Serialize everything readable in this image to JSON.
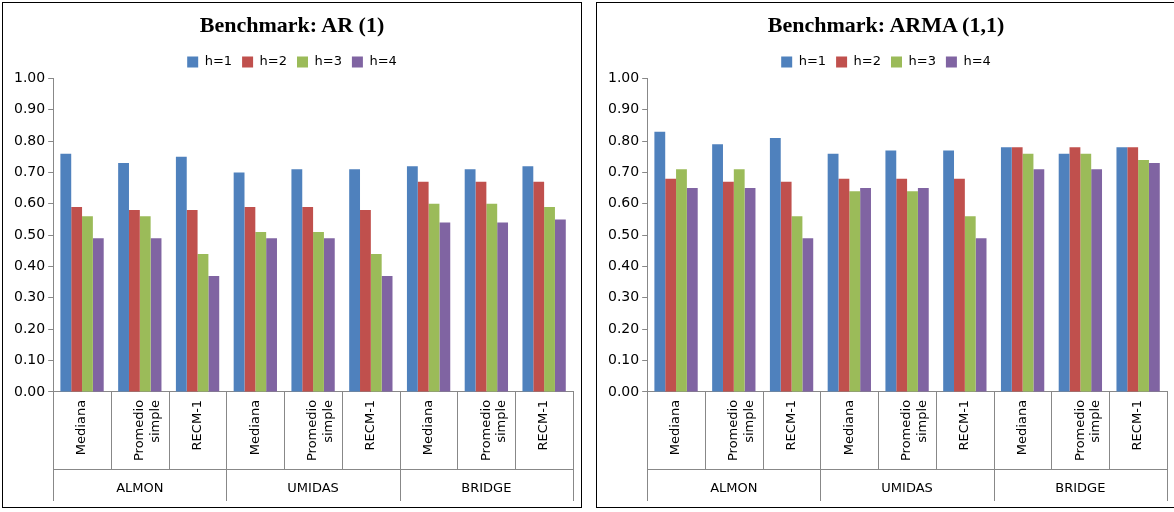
{
  "chart_data": [
    {
      "type": "bar",
      "title": "Benchmark: AR (1)",
      "categories": [
        "Mediana",
        "Promedio simple",
        "RECM-1",
        "Mediana",
        "Promedio simple",
        "RECM-1",
        "Mediana",
        "Promedio simple",
        "RECM-1"
      ],
      "series": [
        {
          "name": "h=1",
          "color": "#4f81bd",
          "values": [
            0.76,
            0.73,
            0.75,
            0.7,
            0.71,
            0.71,
            0.72,
            0.71,
            0.72
          ]
        },
        {
          "name": "h=2",
          "color": "#c0504d",
          "values": [
            0.59,
            0.58,
            0.58,
            0.59,
            0.59,
            0.58,
            0.67,
            0.67,
            0.67
          ]
        },
        {
          "name": "h=3",
          "color": "#9bbb59",
          "values": [
            0.56,
            0.56,
            0.44,
            0.51,
            0.51,
            0.44,
            0.6,
            0.6,
            0.59
          ]
        },
        {
          "name": "h=4",
          "color": "#8064a2",
          "values": [
            0.49,
            0.49,
            0.37,
            0.49,
            0.49,
            0.37,
            0.54,
            0.54,
            0.55
          ]
        }
      ],
      "annotations": [
        "ALMON",
        "UMIDAS",
        "BRIDGE"
      ],
      "ylim": [
        0,
        1
      ],
      "yticks": [
        {
          "value": 0,
          "label": "0.00"
        },
        {
          "value": 0.1,
          "label": "0.10"
        },
        {
          "value": 0.2,
          "label": "0.20"
        },
        {
          "value": 0.3,
          "label": "0.30"
        },
        {
          "value": 0.4,
          "label": "0.40"
        },
        {
          "value": 0.5,
          "label": "0.50"
        },
        {
          "value": 0.6,
          "label": "0.60"
        },
        {
          "value": 0.7,
          "label": "0.70"
        },
        {
          "value": 0.8,
          "label": "0.80"
        },
        {
          "value": 0.9,
          "label": "0.90"
        },
        {
          "value": 1,
          "label": "1.00"
        }
      ],
      "grid": false,
      "legend": "top"
    },
    {
      "type": "bar",
      "title": "Benchmark: ARMA (1,1)",
      "categories": [
        "Mediana",
        "Promedio simple",
        "RECM-1",
        "Mediana",
        "Promedio simple",
        "RECM-1",
        "Mediana",
        "Promedio simple",
        "RECM-1"
      ],
      "series": [
        {
          "name": "h=1",
          "color": "#4f81bd",
          "values": [
            0.83,
            0.79,
            0.81,
            0.76,
            0.77,
            0.77,
            0.78,
            0.76,
            0.78
          ]
        },
        {
          "name": "h=2",
          "color": "#c0504d",
          "values": [
            0.68,
            0.67,
            0.67,
            0.68,
            0.68,
            0.68,
            0.78,
            0.78,
            0.78
          ]
        },
        {
          "name": "h=3",
          "color": "#9bbb59",
          "values": [
            0.71,
            0.71,
            0.56,
            0.64,
            0.64,
            0.56,
            0.76,
            0.76,
            0.74
          ]
        },
        {
          "name": "h=4",
          "color": "#8064a2",
          "values": [
            0.65,
            0.65,
            0.49,
            0.65,
            0.65,
            0.49,
            0.71,
            0.71,
            0.73
          ]
        }
      ],
      "annotations": [
        "ALMON",
        "UMIDAS",
        "BRIDGE"
      ],
      "ylim": [
        0,
        1
      ],
      "yticks": [
        {
          "value": 0,
          "label": "0.00"
        },
        {
          "value": 0.1,
          "label": "0.10"
        },
        {
          "value": 0.2,
          "label": "0.20"
        },
        {
          "value": 0.3,
          "label": "0.30"
        },
        {
          "value": 0.4,
          "label": "0.40"
        },
        {
          "value": 0.5,
          "label": "0.50"
        },
        {
          "value": 0.6,
          "label": "0.60"
        },
        {
          "value": 0.7,
          "label": "0.70"
        },
        {
          "value": 0.8,
          "label": "0.80"
        },
        {
          "value": 0.9,
          "label": "0.90"
        },
        {
          "value": 1,
          "label": "1.00"
        }
      ],
      "grid": false,
      "legend": "top"
    }
  ]
}
